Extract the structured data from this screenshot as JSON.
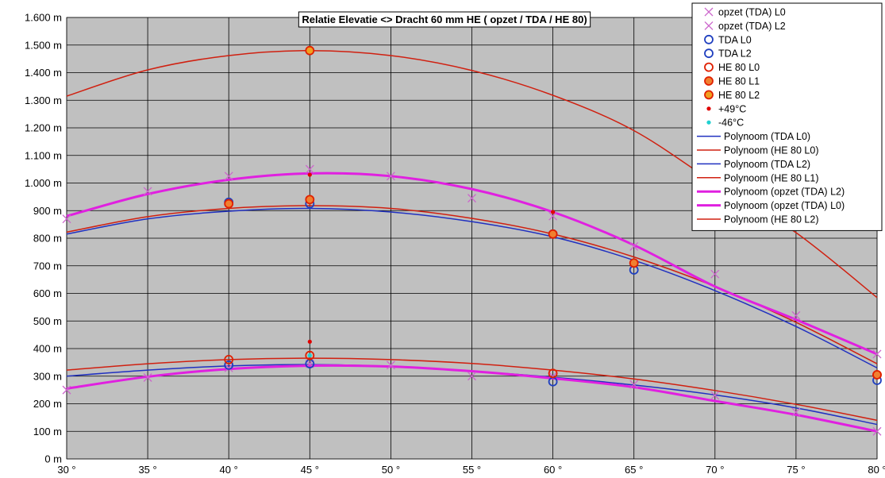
{
  "chart_data": {
    "type": "scatter",
    "title": "Relatie Elevatie <> Dracht 60 mm HE ( opzet / TDA / HE 80)",
    "xlabel": "",
    "ylabel": "",
    "xlim": [
      30,
      80
    ],
    "ylim": [
      0,
      1600
    ],
    "x_ticks": [
      30,
      35,
      40,
      45,
      50,
      55,
      60,
      65,
      70,
      75,
      80
    ],
    "x_tick_labels": [
      "30 °",
      "35 °",
      "40 °",
      "45 °",
      "50 °",
      "55 °",
      "60 °",
      "65 °",
      "70 °",
      "75 °",
      "80 °"
    ],
    "y_ticks": [
      0,
      100,
      200,
      300,
      400,
      500,
      600,
      700,
      800,
      900,
      1000,
      1100,
      1200,
      1300,
      1400,
      1500,
      1600
    ],
    "y_tick_labels": [
      "0 m",
      "100 m",
      "200 m",
      "300 m",
      "400 m",
      "500 m",
      "600 m",
      "700 m",
      "800 m",
      "900 m",
      "1.000 m",
      "1.100 m",
      "1.200 m",
      "1.300 m",
      "1.400 m",
      "1.500 m",
      "1.600 m"
    ],
    "grid": true,
    "background": "#c0c0c0",
    "legend_position": "top-right",
    "series": [
      {
        "name": "opzet (TDA) L0",
        "kind": "marker",
        "marker": "x",
        "color": "#cc66cc",
        "points": [
          [
            30,
            250
          ],
          [
            35,
            295
          ],
          [
            40,
            330
          ],
          [
            45,
            345
          ],
          [
            50,
            340
          ],
          [
            55,
            300
          ],
          [
            60,
            300
          ],
          [
            65,
            270
          ],
          [
            70,
            230
          ],
          [
            75,
            170
          ],
          [
            80,
            100
          ]
        ]
      },
      {
        "name": "opzet (TDA) L2",
        "kind": "marker",
        "marker": "x",
        "color": "#cc66cc",
        "points": [
          [
            30,
            870
          ],
          [
            35,
            970
          ],
          [
            40,
            1025
          ],
          [
            45,
            1050
          ],
          [
            50,
            1025
          ],
          [
            55,
            945
          ],
          [
            60,
            880
          ],
          [
            65,
            770
          ],
          [
            70,
            670
          ],
          [
            75,
            520
          ],
          [
            80,
            380
          ]
        ]
      },
      {
        "name": "TDA L0",
        "kind": "marker",
        "marker": "circle",
        "color": "#1f3fbf",
        "points": [
          [
            40,
            340
          ],
          [
            45,
            345
          ],
          [
            60,
            280
          ],
          [
            80,
            285
          ]
        ]
      },
      {
        "name": "TDA L2",
        "kind": "marker",
        "marker": "circle",
        "color": "#1f3fbf",
        "points": [
          [
            40,
            930
          ],
          [
            45,
            925
          ],
          [
            60,
            815
          ],
          [
            65,
            685
          ]
        ]
      },
      {
        "name": "HE 80 L0",
        "kind": "marker",
        "marker": "circle",
        "color": "#e02000",
        "points": [
          [
            40,
            360
          ],
          [
            45,
            375
          ],
          [
            60,
            310
          ],
          [
            80,
            305
          ]
        ]
      },
      {
        "name": "HE 80 L1",
        "kind": "marker",
        "marker": "circle",
        "color": "#e02000",
        "fill": "#f08030",
        "points": [
          [
            40,
            925
          ],
          [
            45,
            940
          ],
          [
            60,
            815
          ],
          [
            65,
            710
          ],
          [
            80,
            305
          ]
        ]
      },
      {
        "name": "HE 80 L2",
        "kind": "marker",
        "marker": "circle",
        "color": "#e02000",
        "fill": "#f0a020",
        "points": [
          [
            45,
            1480
          ]
        ]
      },
      {
        "name": "+49°C",
        "kind": "marker",
        "marker": "dot",
        "color": "#e00000",
        "points": [
          [
            45,
            425
          ],
          [
            45,
            1030
          ],
          [
            60,
            895
          ]
        ]
      },
      {
        "name": "-46°C",
        "kind": "marker",
        "marker": "dot",
        "color": "#20d0d0",
        "points": [
          [
            45,
            375
          ]
        ]
      },
      {
        "name": "Polynoom (TDA L0)",
        "kind": "line",
        "color": "#2030c0",
        "width": 1.5,
        "points": [
          [
            30,
            300
          ],
          [
            35,
            322
          ],
          [
            40,
            337
          ],
          [
            45,
            342
          ],
          [
            50,
            335
          ],
          [
            55,
            318
          ],
          [
            60,
            296
          ],
          [
            65,
            268
          ],
          [
            70,
            232
          ],
          [
            75,
            185
          ],
          [
            80,
            125
          ]
        ]
      },
      {
        "name": "Polynoom (HE 80 L0)",
        "kind": "line",
        "color": "#d02010",
        "width": 1.5,
        "points": [
          [
            30,
            322
          ],
          [
            35,
            345
          ],
          [
            40,
            360
          ],
          [
            45,
            365
          ],
          [
            50,
            360
          ],
          [
            55,
            346
          ],
          [
            60,
            322
          ],
          [
            65,
            290
          ],
          [
            70,
            248
          ],
          [
            75,
            198
          ],
          [
            80,
            140
          ]
        ]
      },
      {
        "name": "Polynoom (TDA L2)",
        "kind": "line",
        "color": "#2030c0",
        "width": 1.5,
        "points": [
          [
            30,
            815
          ],
          [
            35,
            870
          ],
          [
            40,
            898
          ],
          [
            45,
            908
          ],
          [
            50,
            895
          ],
          [
            55,
            860
          ],
          [
            60,
            805
          ],
          [
            65,
            720
          ],
          [
            70,
            610
          ],
          [
            75,
            480
          ],
          [
            80,
            330
          ]
        ]
      },
      {
        "name": "Polynoom (HE 80 L1)",
        "kind": "line",
        "color": "#d02010",
        "width": 1.5,
        "points": [
          [
            30,
            822
          ],
          [
            35,
            878
          ],
          [
            40,
            908
          ],
          [
            45,
            918
          ],
          [
            50,
            908
          ],
          [
            55,
            872
          ],
          [
            60,
            815
          ],
          [
            65,
            732
          ],
          [
            70,
            625
          ],
          [
            75,
            495
          ],
          [
            80,
            345
          ]
        ]
      },
      {
        "name": "Polynoom (opzet (TDA) L2)",
        "kind": "line",
        "color": "#e020e0",
        "width": 3,
        "points": [
          [
            30,
            880
          ],
          [
            35,
            960
          ],
          [
            40,
            1012
          ],
          [
            45,
            1035
          ],
          [
            50,
            1025
          ],
          [
            55,
            978
          ],
          [
            60,
            895
          ],
          [
            65,
            775
          ],
          [
            70,
            625
          ],
          [
            75,
            505
          ],
          [
            80,
            380
          ]
        ]
      },
      {
        "name": "Polynoom (opzet (TDA) L0)",
        "kind": "line",
        "color": "#e020e0",
        "width": 3,
        "points": [
          [
            30,
            255
          ],
          [
            35,
            298
          ],
          [
            40,
            326
          ],
          [
            45,
            338
          ],
          [
            50,
            335
          ],
          [
            55,
            318
          ],
          [
            60,
            292
          ],
          [
            65,
            260
          ],
          [
            70,
            210
          ],
          [
            75,
            160
          ],
          [
            80,
            100
          ]
        ]
      },
      {
        "name": "Polynoom (HE 80 L2)",
        "kind": "line",
        "color": "#d02010",
        "width": 1.5,
        "points": [
          [
            30,
            1315
          ],
          [
            35,
            1410
          ],
          [
            40,
            1462
          ],
          [
            45,
            1480
          ],
          [
            50,
            1462
          ],
          [
            55,
            1408
          ],
          [
            60,
            1318
          ],
          [
            65,
            1190
          ],
          [
            70,
            1000
          ],
          [
            75,
            820
          ],
          [
            80,
            585
          ]
        ]
      }
    ]
  }
}
